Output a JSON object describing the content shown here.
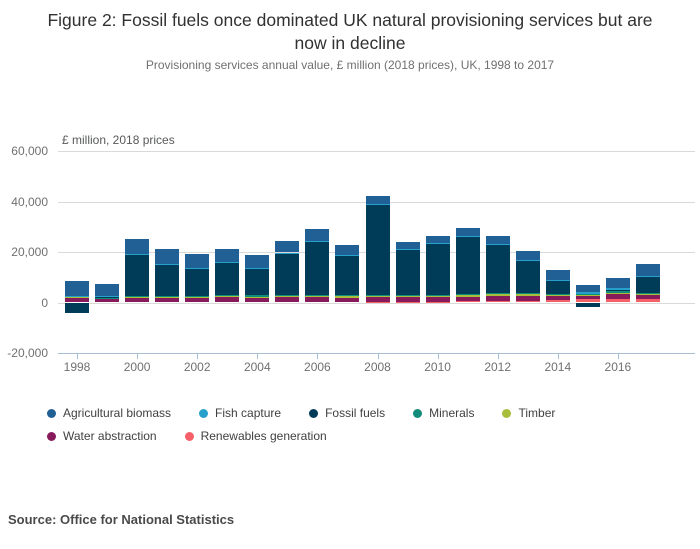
{
  "figure": {
    "title": "Figure 2: Fossil fuels once dominated UK natural provisioning services but are now in decline",
    "subtitle": "Provisioning services annual value, £ million (2018 prices), UK, 1998 to 2017",
    "axis_note": "£ million, 2018 prices",
    "source": "Source: Office for National Statistics"
  },
  "chart_data": {
    "type": "bar",
    "stacked": true,
    "title": "Figure 2: Fossil fuels once dominated UK natural provisioning services but are now in decline",
    "subtitle": "Provisioning services annual value, £ million (2018 prices), UK, 1998 to 2017",
    "ylabel": "£ million, 2018 prices",
    "xlabel": "",
    "ylim": [
      -20000,
      60000
    ],
    "grid": true,
    "legend_position": "bottom",
    "x": [
      1998,
      1999,
      2000,
      2001,
      2002,
      2003,
      2004,
      2005,
      2006,
      2007,
      2008,
      2009,
      2010,
      2011,
      2012,
      2013,
      2014,
      2015,
      2016,
      2017
    ],
    "x_tick_labels": [
      "1998",
      "2000",
      "2002",
      "2004",
      "2006",
      "2008",
      "2010",
      "2012",
      "2014",
      "2016"
    ],
    "y_ticks": [
      {
        "value": 60000,
        "label": "60,000"
      },
      {
        "value": 40000,
        "label": "40,000"
      },
      {
        "value": 20000,
        "label": "20,000"
      },
      {
        "value": 0,
        "label": "0"
      },
      {
        "value": -20000,
        "label": "-20,000"
      }
    ],
    "series": [
      {
        "name": "Agricultural biomass",
        "color": "#206095",
        "values": [
          6000,
          5000,
          5900,
          5700,
          5600,
          5400,
          5200,
          4700,
          4800,
          4000,
          2900,
          2600,
          2600,
          3400,
          3100,
          3500,
          3800,
          2900,
          4000,
          5000
        ]
      },
      {
        "name": "Fish capture",
        "color": "#27A0CC",
        "values": [
          100,
          100,
          100,
          100,
          100,
          100,
          100,
          100,
          100,
          100,
          100,
          100,
          100,
          100,
          100,
          100,
          100,
          500,
          800,
          300
        ]
      },
      {
        "name": "Fossil fuels",
        "color": "#003C57",
        "values": [
          -4200,
          400,
          16800,
          12700,
          10700,
          12700,
          10800,
          16700,
          21100,
          15900,
          36000,
          18200,
          20500,
          22800,
          19500,
          13000,
          5500,
          -1900,
          300,
          6200
        ]
      },
      {
        "name": "Minerals",
        "color": "#118C7B",
        "values": [
          200,
          200,
          500,
          300,
          400,
          400,
          500,
          400,
          400,
          400,
          500,
          400,
          500,
          400,
          300,
          300,
          400,
          600,
          800,
          600
        ]
      },
      {
        "name": "Timber",
        "color": "#A8BD3A",
        "values": [
          700,
          300,
          300,
          500,
          400,
          500,
          400,
          600,
          600,
          500,
          400,
          400,
          400,
          600,
          700,
          700,
          500,
          300,
          300,
          300
        ]
      },
      {
        "name": "Water abstraction",
        "color": "#871A5B",
        "values": [
          1600,
          1400,
          1700,
          1800,
          1900,
          2200,
          1900,
          2000,
          2000,
          1900,
          2000,
          1900,
          1900,
          1900,
          1900,
          1900,
          1800,
          1400,
          2200,
          1700
        ]
      },
      {
        "name": "Renewables generation",
        "color": "#F66068",
        "values": [
          0,
          0,
          0,
          0,
          0,
          0,
          0,
          0,
          0,
          0,
          200,
          300,
          300,
          400,
          700,
          700,
          800,
          1200,
          1300,
          1200
        ]
      }
    ]
  }
}
